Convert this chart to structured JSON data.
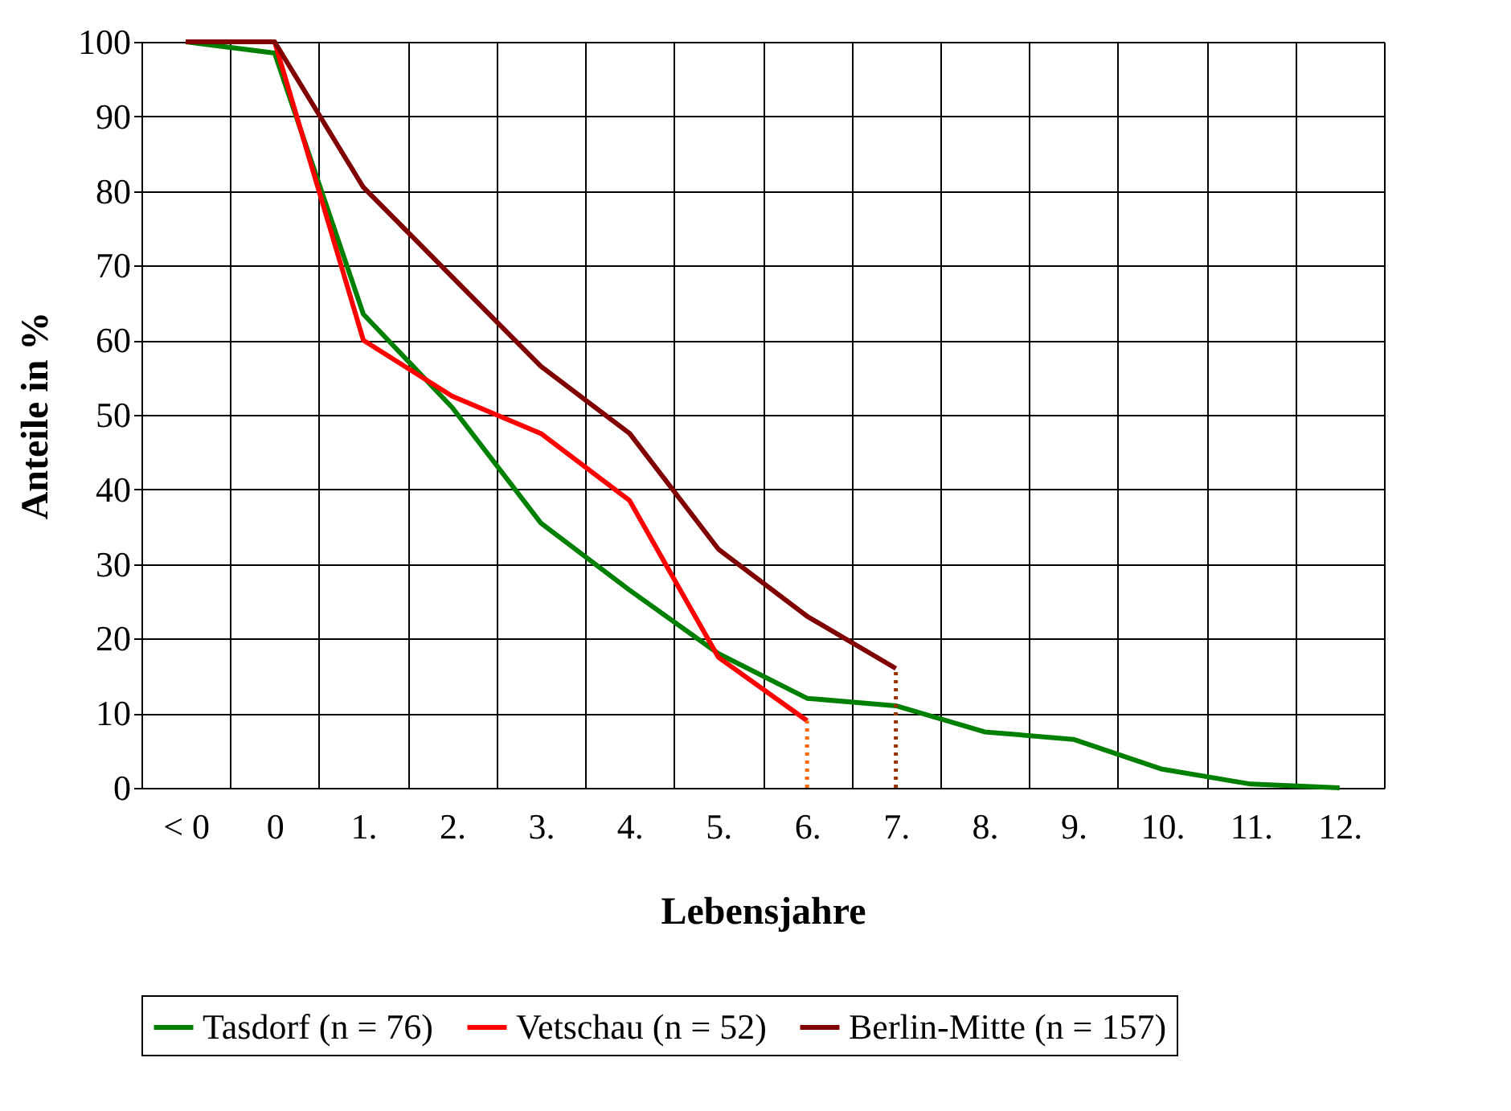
{
  "chart_data": {
    "type": "line",
    "xlabel": "Lebensjahre",
    "ylabel": "Anteile in %",
    "categories": [
      "< 0",
      "0",
      "1.",
      "2.",
      "3.",
      "4.",
      "5.",
      "6.",
      "7.",
      "8.",
      "9.",
      "10.",
      "11.",
      "12."
    ],
    "series": [
      {
        "name": "Tasdorf (n = 76)",
        "color": "#008000",
        "values": [
          100,
          98.5,
          63.5,
          51,
          35.5,
          26.5,
          18,
          12,
          11,
          7.5,
          6.5,
          2.5,
          0.5,
          0
        ]
      },
      {
        "name": "Vetschau (n = 52)",
        "color": "#ff0000",
        "values": [
          100,
          100,
          60,
          52.5,
          47.5,
          38.5,
          17.5,
          9,
          null,
          null,
          null,
          null,
          null,
          null
        ]
      },
      {
        "name": "Berlin-Mitte (n = 157)",
        "color": "#800000",
        "values": [
          100,
          100,
          80.5,
          68.5,
          56.5,
          47.5,
          32,
          23,
          16,
          null,
          null,
          null,
          null,
          null
        ]
      }
    ],
    "ylim": [
      0,
      100
    ],
    "yticks": [
      0,
      10,
      20,
      30,
      40,
      50,
      60,
      70,
      80,
      90,
      100
    ],
    "ref_lines": [
      {
        "axis": "x",
        "value": "6.",
        "color": "#ff6600",
        "line_style": "dotted"
      },
      {
        "axis": "x",
        "value": "7.",
        "color": "#993300",
        "line_style": "dotted"
      }
    ],
    "grid": true,
    "legend": "bottom",
    "marker": "none",
    "line_style": "solid"
  }
}
